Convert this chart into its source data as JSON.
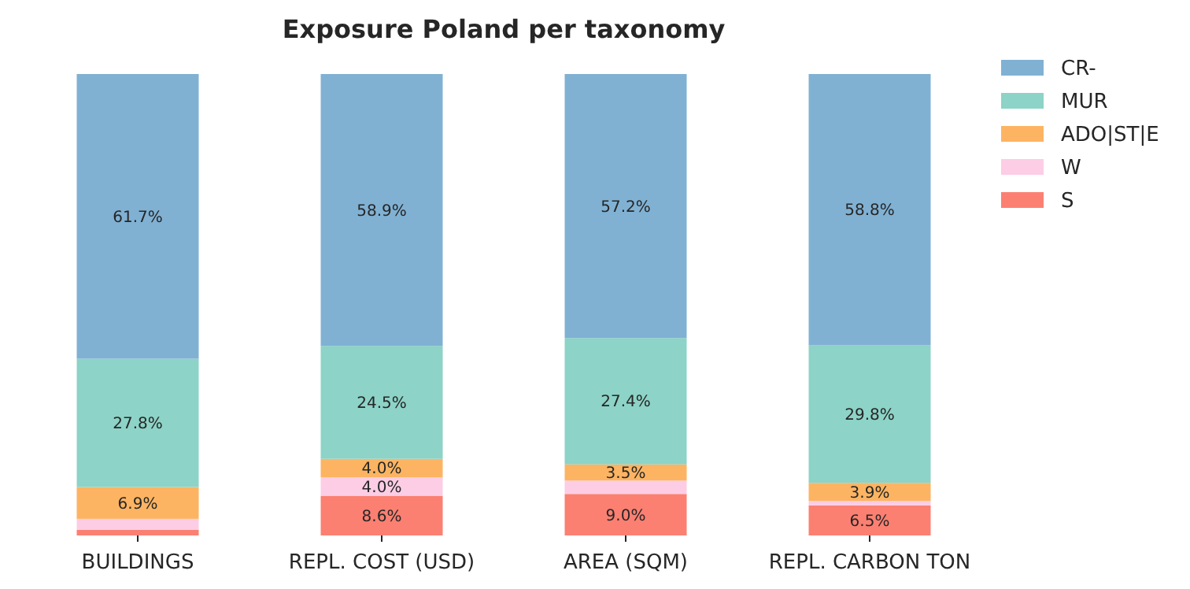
{
  "chart_data": {
    "type": "bar",
    "title": "Exposure Poland per taxonomy",
    "stacked": true,
    "categories": [
      "BUILDINGS",
      "REPL. COST (USD)",
      "AREA (SQM)",
      "REPL. CARBON TON"
    ],
    "series": [
      {
        "name": "S",
        "color": "#fb8072",
        "values": [
          1.2,
          8.6,
          9.0,
          6.5
        ],
        "value_labels": [
          null,
          "8.6%",
          "9.0%",
          "6.5%"
        ]
      },
      {
        "name": "W",
        "color": "#fccde5",
        "values": [
          2.4,
          4.0,
          2.9,
          1.0
        ],
        "value_labels": [
          null,
          "4.0%",
          null,
          null
        ]
      },
      {
        "name": "ADO|ST|E",
        "color": "#fdb462",
        "values": [
          6.9,
          4.0,
          3.5,
          3.9
        ],
        "value_labels": [
          "6.9%",
          "4.0%",
          "3.5%",
          "3.9%"
        ]
      },
      {
        "name": "MUR",
        "color": "#8dd3c7",
        "values": [
          27.8,
          24.5,
          27.4,
          29.8
        ],
        "value_labels": [
          "27.8%",
          "24.5%",
          "27.4%",
          "29.8%"
        ]
      },
      {
        "name": "CR-",
        "color": "#80b1d3",
        "values": [
          61.7,
          58.9,
          57.2,
          58.8
        ],
        "value_labels": [
          "61.7%",
          "58.9%",
          "57.2%",
          "58.8%"
        ]
      }
    ],
    "ylim": [
      0,
      100
    ],
    "tick_labels": "x",
    "legend": "top right"
  }
}
